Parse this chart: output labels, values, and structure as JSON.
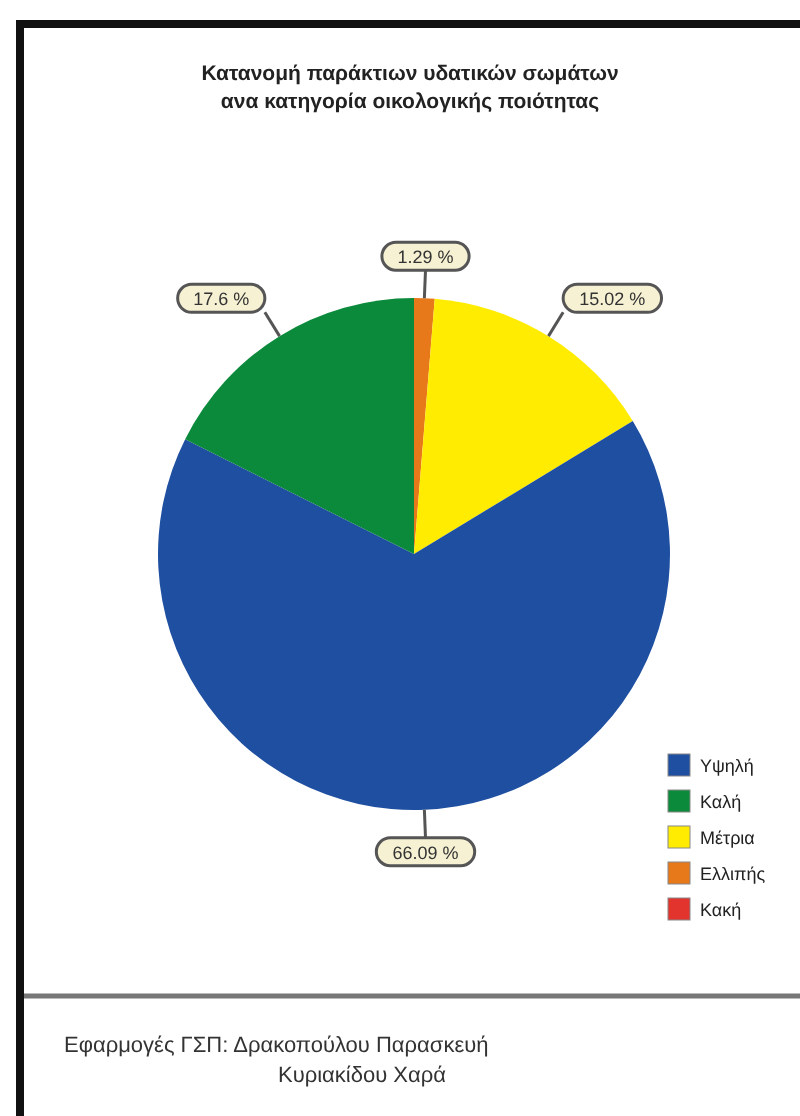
{
  "chart_data": {
    "type": "pie",
    "title": "Κατανομή παράκτιων υδατικών σωμάτων\nανα κατηγορία οικολογικής ποιότητας",
    "categories": [
      "Υψηλή",
      "Καλή",
      "Μέτρια",
      "Ελλιπής",
      "Κακή"
    ],
    "values": [
      66.09,
      17.6,
      15.02,
      1.29,
      0
    ],
    "colors": [
      "#1f4fa0",
      "#0a8a3a",
      "#ffec00",
      "#e8791a",
      "#e2332c"
    ],
    "value_labels": [
      "66.09 %",
      "17.6 %",
      "15.02 %",
      "1.29 %",
      null
    ],
    "legend": "bottom right",
    "annotations": [
      "Εφαρμογές ΓΣΠ:  Δρακοπούλου Παρασκευή\nΚυριακίδου Χαρά"
    ]
  }
}
